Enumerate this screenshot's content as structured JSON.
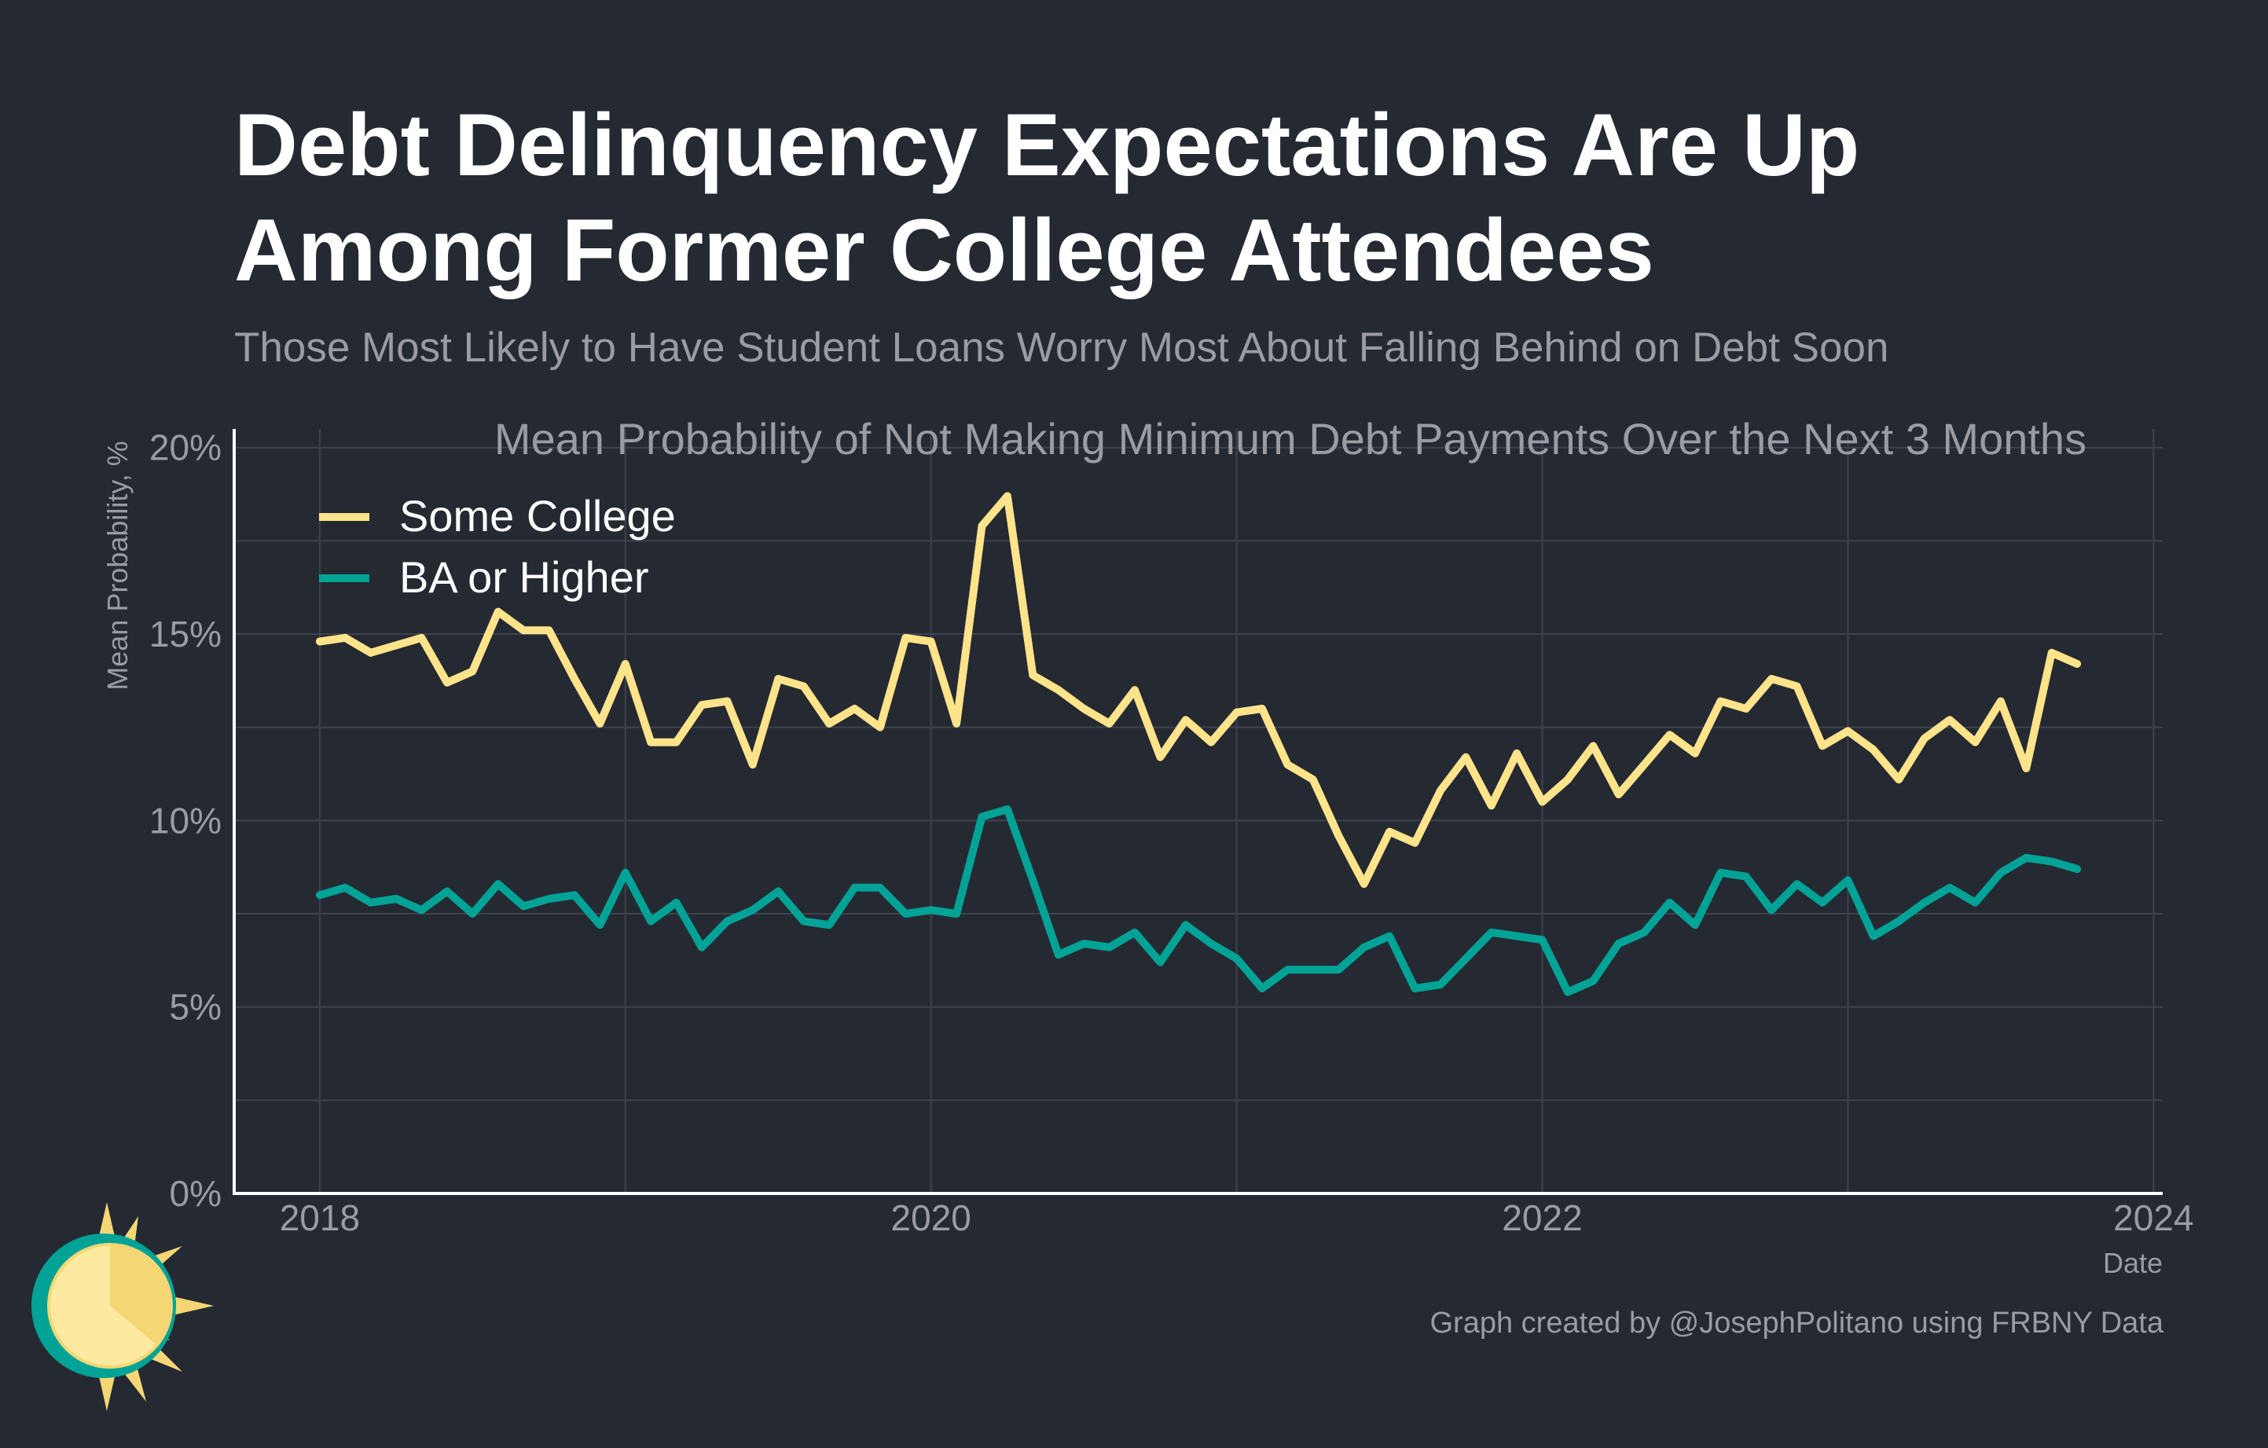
{
  "title_line1": "Debt Delinquency Expectations Are Up",
  "title_line2": "Among Former College Attendees",
  "subtitle": "Those Most Likely to Have Student Loans Worry Most About Falling Behind on Debt Soon",
  "footer": "Graph created by @JosephPolitano using FRBNY Data",
  "colors": {
    "background": "#252932",
    "some_college": "#fde38a",
    "ba_or_higher": "#00a396",
    "axis": "#ffffff",
    "grid": "#3e434d",
    "muted_text": "#9a9ca2"
  },
  "chart_data": {
    "type": "line",
    "title": "Mean Probability of Not Making Minimum Debt Payments Over the Next 3 Months",
    "xlabel": "Date",
    "ylabel": "Mean Probability, %",
    "xlim": [
      2017.72,
      2024.03
    ],
    "ylim": [
      0,
      20.5
    ],
    "x_ticks": [
      2018,
      2020,
      2022,
      2024
    ],
    "x_tick_labels": [
      "2018",
      "2020",
      "2022",
      "2024"
    ],
    "y_ticks": [
      0,
      5,
      10,
      15,
      20
    ],
    "y_tick_labels": [
      "0%",
      "5%",
      "10%",
      "15%",
      "20%"
    ],
    "legend_position": "top-left",
    "x_start": 2018.0,
    "x_step_months": 1,
    "series": [
      {
        "name": "Some College",
        "color": "#fde38a",
        "values": [
          14.8,
          14.9,
          14.5,
          14.7,
          14.9,
          13.7,
          14.0,
          15.6,
          15.1,
          15.1,
          13.8,
          12.6,
          14.2,
          12.1,
          12.1,
          13.1,
          13.2,
          11.5,
          13.8,
          13.6,
          12.6,
          13.0,
          12.5,
          14.9,
          14.8,
          12.6,
          17.9,
          18.7,
          13.9,
          13.5,
          13.0,
          12.6,
          13.5,
          11.7,
          12.7,
          12.1,
          12.9,
          13.0,
          11.5,
          11.1,
          9.6,
          8.3,
          9.7,
          9.4,
          10.8,
          11.7,
          10.4,
          11.8,
          10.5,
          11.1,
          12.0,
          10.7,
          11.5,
          12.3,
          11.8,
          13.2,
          13.0,
          13.8,
          13.6,
          12.0,
          12.4,
          11.9,
          11.1,
          12.2,
          12.7,
          12.1,
          13.2,
          11.4,
          14.5,
          14.2
        ]
      },
      {
        "name": "BA or Higher",
        "color": "#00a396",
        "values": [
          8.0,
          8.2,
          7.8,
          7.9,
          7.6,
          8.1,
          7.5,
          8.3,
          7.7,
          7.9,
          8.0,
          7.2,
          8.6,
          7.3,
          7.8,
          6.6,
          7.3,
          7.6,
          8.1,
          7.3,
          7.2,
          8.2,
          8.2,
          7.5,
          7.6,
          7.5,
          10.1,
          10.3,
          8.4,
          6.4,
          6.7,
          6.6,
          7.0,
          6.2,
          7.2,
          6.7,
          6.3,
          5.5,
          6.0,
          6.0,
          6.0,
          6.6,
          6.9,
          5.5,
          5.6,
          6.3,
          7.0,
          6.9,
          6.8,
          5.4,
          5.7,
          6.7,
          7.0,
          7.8,
          7.2,
          8.6,
          8.5,
          7.6,
          8.3,
          7.8,
          8.4,
          6.9,
          7.3,
          7.8,
          8.2,
          7.8,
          8.6,
          9.0,
          8.9,
          8.7
        ]
      }
    ]
  }
}
